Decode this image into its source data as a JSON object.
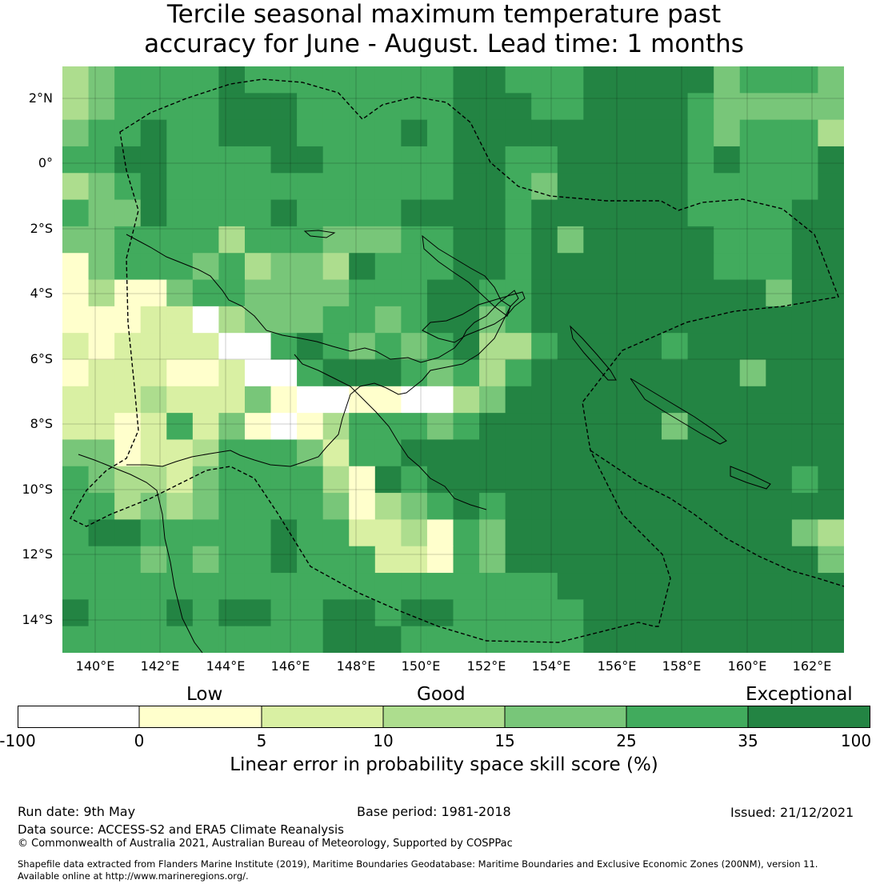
{
  "title_line1": "Tercile seasonal maximum temperature past",
  "title_line2": "accuracy for June - August. Lead time: 1 months",
  "map": {
    "lat_labels": [
      "2°N",
      "0°",
      "2°S",
      "4°S",
      "6°S",
      "8°S",
      "10°S",
      "12°S",
      "14°S"
    ],
    "lon_labels": [
      "140°E",
      "142°E",
      "144°E",
      "146°E",
      "148°E",
      "150°E",
      "152°E",
      "154°E",
      "156°E",
      "158°E",
      "160°E",
      "162°E"
    ],
    "colors": {
      "white": "#ffffff",
      "cat_0_5": "#ffffcc",
      "cat_5_10": "#d9f0a3",
      "cat_10_15": "#addd8e",
      "cat_15_25": "#78c679",
      "cat_25_35": "#41ab5d",
      "cat_35_100": "#238443"
    }
  },
  "colorbar": {
    "headings": {
      "low": "Low",
      "good": "Good",
      "exceptional": "Exceptional"
    },
    "ticks": [
      "-100",
      "0",
      "5",
      "10",
      "15",
      "25",
      "35",
      "100"
    ],
    "label": "Linear error in probability space skill score (%)"
  },
  "footer": {
    "run_date": "Run date: 9th May",
    "base_period": "Base period: 1981-2018",
    "issued": "Issued: 21/12/2021",
    "data_source": "Data source: ACCESS-S2 and ERA5 Climate Reanalysis",
    "copyright": "© Commonwealth of Australia 2021, Australian Bureau of Meteorology, Supported by COSPPac",
    "shapefile_line1": "Shapefile data extracted from Flanders Marine Institute (2019), Maritime Boundaries Geodatabase: Maritime Boundaries and Exclusive Economic Zones (200NM), version 11.",
    "shapefile_line2": "Available online at http://www.marineregions.org/."
  }
}
